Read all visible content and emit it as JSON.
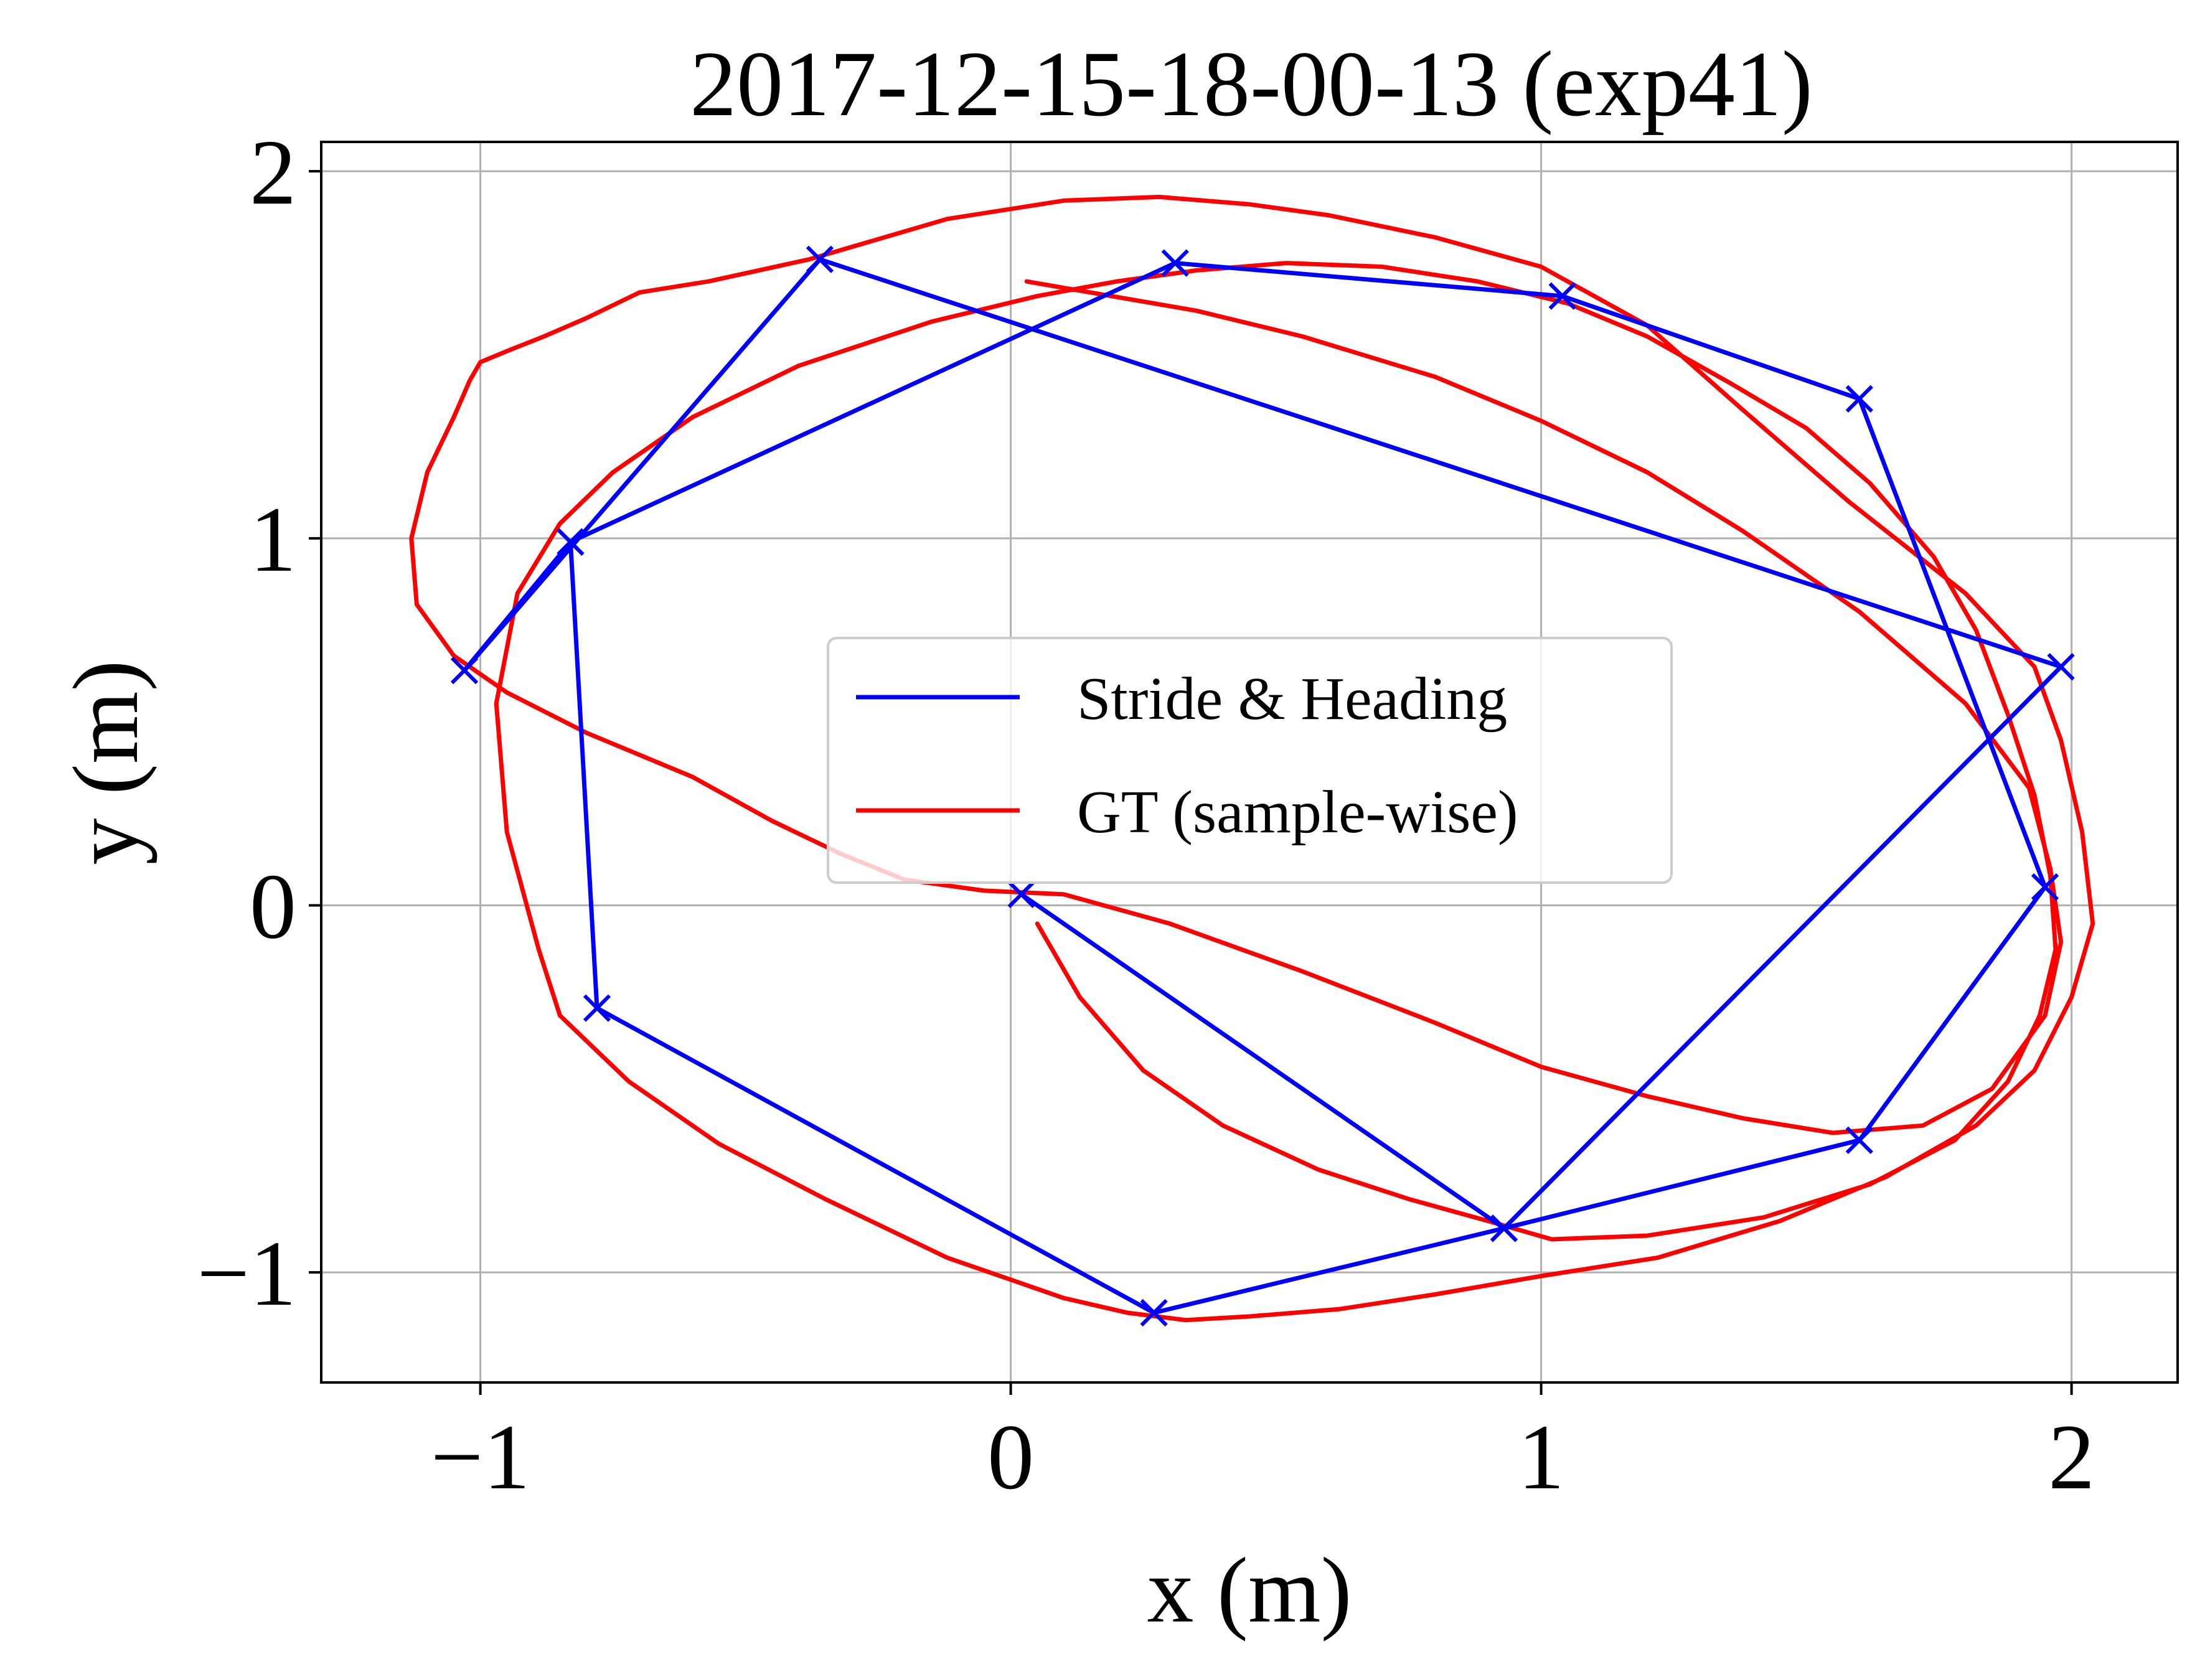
{
  "chart_data": {
    "type": "line",
    "title": "2017-12-15-18-00-13 (exp41)",
    "xlabel": "x (m)",
    "ylabel": "y (m)",
    "xlim": [
      -1.3,
      2.2
    ],
    "ylim": [
      -1.3,
      2.08
    ],
    "xticks": [
      -1,
      0,
      1,
      2
    ],
    "yticks": [
      -1,
      0,
      1,
      2
    ],
    "xtick_labels": [
      "−1",
      "0",
      "1",
      "2"
    ],
    "ytick_labels": [
      "−1",
      "0",
      "1",
      "2"
    ],
    "grid": true,
    "legend_position": "center",
    "series": [
      {
        "name": "Stride & Heading",
        "color": "#0000ff",
        "marker": "x",
        "x": [
          0.02,
          0.93,
          1.6,
          1.95,
          1.6,
          1.04,
          0.31,
          -0.83,
          -1.03,
          -0.36,
          1.98,
          0.93,
          0.27,
          -0.78,
          -0.83
        ],
        "y": [
          0.03,
          -0.88,
          -0.64,
          0.05,
          1.38,
          1.66,
          1.75,
          0.99,
          0.64,
          1.76,
          0.65,
          -0.88,
          -1.11,
          -0.28,
          0.99
        ]
      },
      {
        "name": "GT (sample-wise)",
        "color": "#ff0000",
        "x": [
          0.05,
          0.13,
          0.25,
          0.4,
          0.58,
          0.75,
          0.9,
          1.02,
          1.2,
          1.42,
          1.62,
          1.78,
          1.88,
          1.94,
          1.97,
          1.96,
          1.93,
          1.88,
          1.82,
          1.74,
          1.62,
          1.5,
          1.36,
          1.2,
          1.05,
          0.88,
          0.7,
          0.52,
          0.35,
          0.2,
          0.05,
          -0.15,
          -0.4,
          -0.6,
          -0.75,
          -0.85,
          -0.93,
          -0.97,
          -0.95,
          -0.89,
          -0.85,
          -0.72,
          -0.55,
          -0.35,
          -0.12,
          0.1,
          0.22,
          0.33,
          0.45,
          0.62,
          0.8,
          1.0,
          1.22,
          1.45,
          1.65,
          1.82,
          1.93,
          2.0,
          2.04,
          2.02,
          1.98,
          1.93,
          1.8,
          1.58,
          1.38,
          1.2,
          1.0,
          0.8,
          0.6,
          0.45,
          0.28,
          0.1,
          -0.12,
          -0.38,
          -0.57,
          -0.7,
          -0.8,
          -0.88,
          -0.95,
          -1.0,
          -1.02,
          -1.05,
          -1.1,
          -1.13,
          -1.12,
          -1.05,
          -0.95,
          -0.8,
          -0.6,
          -0.45,
          -0.32,
          -0.2,
          -0.05,
          0.1,
          0.3,
          0.55,
          0.8,
          1.0,
          1.2,
          1.38,
          1.55,
          1.72,
          1.85,
          1.95,
          1.98,
          1.96,
          1.92,
          1.8,
          1.6,
          1.38,
          1.2,
          1.0,
          0.8,
          0.55,
          0.35,
          0.15,
          0.03
        ],
        "y": [
          -0.05,
          -0.25,
          -0.45,
          -0.6,
          -0.72,
          -0.8,
          -0.86,
          -0.91,
          -0.9,
          -0.85,
          -0.76,
          -0.64,
          -0.48,
          -0.3,
          -0.12,
          0.08,
          0.3,
          0.52,
          0.75,
          0.95,
          1.15,
          1.3,
          1.42,
          1.55,
          1.64,
          1.7,
          1.74,
          1.75,
          1.73,
          1.7,
          1.66,
          1.59,
          1.47,
          1.33,
          1.18,
          1.04,
          0.85,
          0.55,
          0.2,
          -0.12,
          -0.3,
          -0.48,
          -0.65,
          -0.8,
          -0.96,
          -1.07,
          -1.11,
          -1.13,
          -1.12,
          -1.1,
          -1.06,
          -1.01,
          -0.96,
          -0.86,
          -0.74,
          -0.6,
          -0.45,
          -0.25,
          -0.05,
          0.2,
          0.45,
          0.65,
          0.85,
          1.1,
          1.35,
          1.58,
          1.74,
          1.82,
          1.88,
          1.91,
          1.93,
          1.92,
          1.87,
          1.76,
          1.7,
          1.67,
          1.6,
          1.55,
          1.51,
          1.48,
          1.43,
          1.33,
          1.18,
          1.0,
          0.82,
          0.68,
          0.58,
          0.47,
          0.35,
          0.23,
          0.14,
          0.07,
          0.04,
          0.03,
          -0.05,
          -0.18,
          -0.32,
          -0.44,
          -0.52,
          -0.58,
          -0.62,
          -0.6,
          -0.5,
          -0.3,
          -0.1,
          0.1,
          0.32,
          0.55,
          0.8,
          1.02,
          1.18,
          1.32,
          1.44,
          1.55,
          1.62,
          1.67,
          1.7
        ]
      }
    ]
  }
}
